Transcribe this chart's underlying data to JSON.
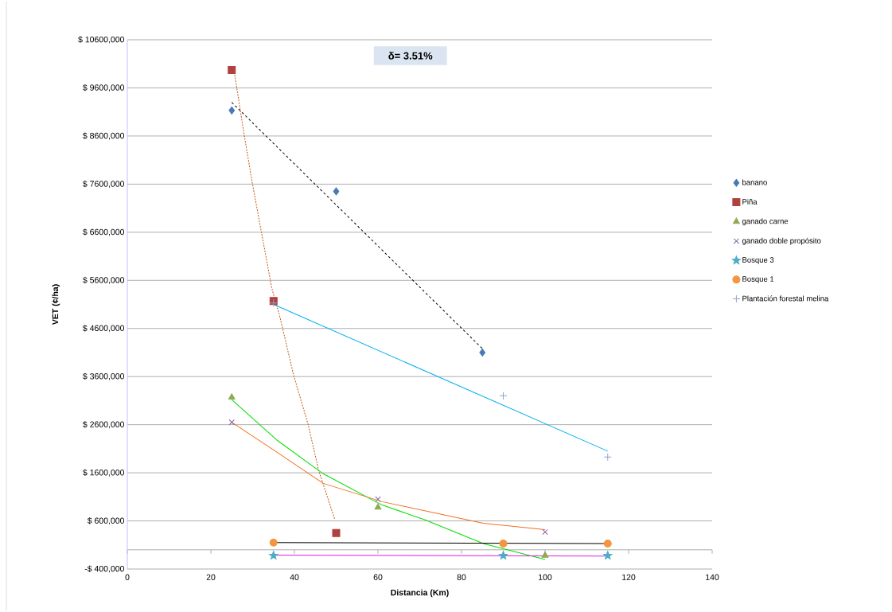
{
  "chart_data": {
    "type": "scatter",
    "xlabel": "Distancia (Km)",
    "ylabel": "VET (¢/ha)",
    "annotations": [
      "δ= 3.51%"
    ],
    "xlim": [
      0,
      140
    ],
    "xticks": [
      0,
      20,
      40,
      60,
      80,
      100,
      120,
      140
    ],
    "ylim": [
      -400000,
      10600000
    ],
    "yticks": [
      {
        "value": -400000,
        "label": "-$ 400,000"
      },
      {
        "value": 600000,
        "label": "$ 600,000"
      },
      {
        "value": 1600000,
        "label": "$ 1600,000"
      },
      {
        "value": 2600000,
        "label": "$ 2600,000"
      },
      {
        "value": 3600000,
        "label": "$ 3600,000"
      },
      {
        "value": 4600000,
        "label": "$ 4600,000"
      },
      {
        "value": 5600000,
        "label": "$ 5600,000"
      },
      {
        "value": 6600000,
        "label": "$ 6600,000"
      },
      {
        "value": 7600000,
        "label": "$ 7600,000"
      },
      {
        "value": 8600000,
        "label": "$ 8600,000"
      },
      {
        "value": 9600000,
        "label": "$ 9600,000"
      },
      {
        "value": 10600000,
        "label": "$ 10600,000"
      }
    ],
    "grid": "y",
    "legend": "right",
    "series": [
      {
        "name": "banano",
        "marker": "diamond",
        "color": "#4a7ab5",
        "x": [
          25,
          50,
          85
        ],
        "values": [
          9130000,
          7450000,
          4100000
        ]
      },
      {
        "name": "Piña",
        "marker": "square",
        "color": "#b0413e",
        "x": [
          25,
          35,
          50
        ],
        "values": [
          9970000,
          5170000,
          350000
        ]
      },
      {
        "name": "ganado carne",
        "marker": "triangle",
        "color": "#8faa50",
        "x": [
          25,
          60,
          100
        ],
        "values": [
          3170000,
          880000,
          -120000
        ]
      },
      {
        "name": "ganado doble propósito",
        "marker": "cross",
        "color": "#7a5fa0",
        "x": [
          25,
          60,
          100
        ],
        "values": [
          2650000,
          1050000,
          370000
        ]
      },
      {
        "name": "Bosque 3",
        "marker": "star",
        "color": "#4bacc6",
        "x": [
          35,
          90,
          115
        ],
        "values": [
          -120000,
          -120000,
          -120000
        ]
      },
      {
        "name": "Bosque 1",
        "marker": "circle",
        "color": "#f39640",
        "x": [
          35,
          90,
          115
        ],
        "values": [
          150000,
          130000,
          130000
        ]
      },
      {
        "name": "Plantación forestal melina",
        "marker": "plus",
        "color": "#8fa4d0",
        "x": [
          35,
          90,
          115
        ],
        "values": [
          5130000,
          3200000,
          1930000
        ]
      },
      {
        "type": "line",
        "marker": "none",
        "line_style": "dashed",
        "color": "#000000",
        "x": [
          25,
          85
        ],
        "values": [
          9300000,
          4180000
        ]
      },
      {
        "type": "line",
        "marker": "none",
        "line_style": "dotted",
        "color": "#c55a11",
        "x": [
          25,
          25.6,
          27.7,
          29.8,
          32.1,
          34.6,
          36.5,
          39.8,
          43.3,
          45.8,
          49.7
        ],
        "values": [
          9950000,
          9930000,
          8770000,
          7680000,
          6600000,
          5430000,
          4850000,
          3630000,
          2600000,
          1650000,
          620000
        ]
      },
      {
        "type": "line",
        "marker": "none",
        "line_style": "solid",
        "color": "#00e000",
        "x": [
          25,
          35.8,
          46.9,
          61,
          71.3,
          85.2,
          100
        ],
        "values": [
          3120000,
          2280000,
          1580000,
          930000,
          620000,
          130000,
          -200000
        ]
      },
      {
        "type": "line",
        "marker": "none",
        "line_style": "solid",
        "color": "#f07020",
        "x": [
          25,
          35.8,
          46.9,
          61,
          85.2,
          100
        ],
        "values": [
          2650000,
          2030000,
          1380000,
          1000000,
          550000,
          420000
        ]
      },
      {
        "type": "line",
        "marker": "none",
        "line_style": "solid",
        "color": "#e020e0",
        "x": [
          35,
          115
        ],
        "values": [
          -110000,
          -130000
        ]
      },
      {
        "type": "line",
        "marker": "none",
        "line_style": "solid",
        "color": "#000000",
        "x": [
          35,
          115
        ],
        "values": [
          150000,
          130000
        ]
      },
      {
        "type": "line",
        "marker": "none",
        "line_style": "solid",
        "color": "#00b0f0",
        "x": [
          35,
          115
        ],
        "values": [
          5100000,
          2050000
        ]
      }
    ]
  }
}
